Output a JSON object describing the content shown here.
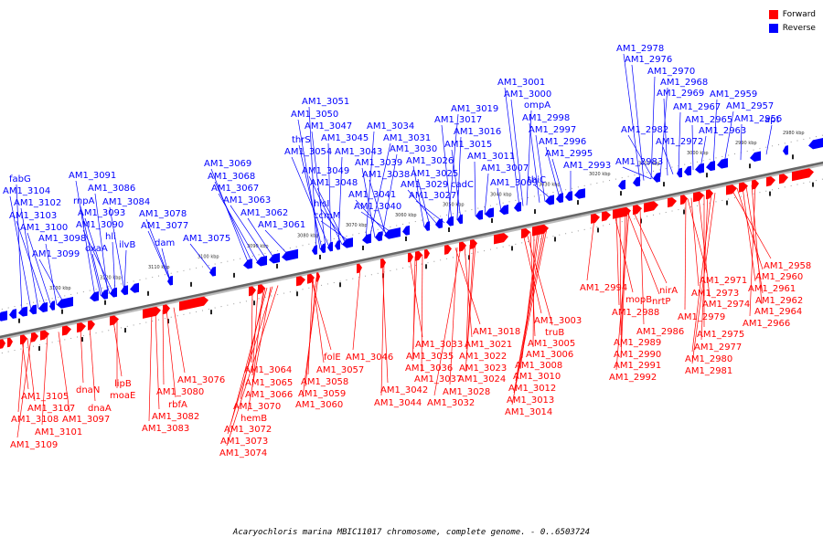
{
  "legend": {
    "forward_label": "Forward",
    "reverse_label": "Reverse",
    "forward_color": "#ff0000",
    "reverse_color": "#0000ff"
  },
  "caption": "Acaryochloris marina MBIC11017 chromosome, complete genome. - 0..6503724",
  "ticks": [
    "3130 kbp",
    "3120 kbp",
    "3110 kbp",
    "3100 kbp",
    "3090 kbp",
    "3080 kbp",
    "3070 kbp",
    "3060 kbp",
    "3050 kbp",
    "3040 kbp",
    "3030 kbp",
    "3020 kbp",
    "3010 kbp",
    "3000 kbp",
    "2990 kbp",
    "2980 kbp"
  ],
  "reverse_labels": [
    "fabG",
    "AM1_3104",
    "AM1_3102",
    "AM1_3103",
    "AM1_3100",
    "AM1_3098",
    "AM1_3099",
    "AM1_3091",
    "rnpA",
    "AM1_3086",
    "AM1_3093",
    "AM1_3084",
    "AM1_3090",
    "hli",
    "ilvB",
    "oxaA",
    "AM1_3078",
    "AM1_3077",
    "dam",
    "AM1_3075",
    "AM1_3069",
    "AM1_3068",
    "AM1_3067",
    "AM1_3063",
    "AM1_3062",
    "AM1_3061",
    "AM1_3051",
    "AM1_3050",
    "AM1_3047",
    "thrS",
    "AM1_3045",
    "AM1_3054",
    "AM1_3043",
    "AM1_3049",
    "AM1_3048",
    "hisI",
    "ccmM",
    "AM1_3034",
    "AM1_3031",
    "AM1_3039",
    "AM1_3030",
    "AM1_3038",
    "AM1_3041",
    "AM1_3040",
    "AM1_3026",
    "AM1_3025",
    "AM1_3029",
    "AM1_3027",
    "AM1_3019",
    "AM1_3017",
    "AM1_3016",
    "AM1_3015",
    "AM1_3011",
    "cadC",
    "AM1_3007",
    "AM1_3009",
    "AM1_3001",
    "AM1_3000",
    "ompA",
    "AM1_2998",
    "AM1_2997",
    "thiC",
    "AM1_2996",
    "AM1_2995",
    "AM1_2993",
    "AM1_2978",
    "AM1_2976",
    "AM1_2970",
    "AM1_2968",
    "AM1_2969",
    "AM1_2959",
    "AM1_2967",
    "AM1_2957",
    "AM1_2965",
    "AM1_2956",
    "AM1_2982",
    "AM1_2963",
    "AM1_2972",
    "apt",
    "AM1_2983"
  ],
  "forward_labels": [
    "AM1_3105",
    "AM1_3107",
    "AM1_3108",
    "AM1_3109",
    "dnaN",
    "dnaA",
    "AM1_3101",
    "AM1_3097",
    "lipB",
    "moaE",
    "AM1_3076",
    "AM1_3080",
    "rbfA",
    "AM1_3082",
    "AM1_3083",
    "AM1_3064",
    "AM1_3065",
    "AM1_3066",
    "AM1_3070",
    "hemB",
    "AM1_3072",
    "AM1_3073",
    "AM1_3074",
    "folE",
    "AM1_3057",
    "AM1_3058",
    "AM1_3059",
    "AM1_3060",
    "AM1_3046",
    "AM1_3042",
    "AM1_3044",
    "AM1_3033",
    "AM1_3035",
    "AM1_3036",
    "AM1_3037",
    "AM1_3028",
    "AM1_3032",
    "AM1_3018",
    "AM1_3021",
    "AM1_3022",
    "AM1_3023",
    "AM1_3024",
    "AM1_3003",
    "truB",
    "AM1_3005",
    "AM1_3006",
    "AM1_3008",
    "AM1_3010",
    "AM1_3012",
    "AM1_3013",
    "AM1_3014",
    "AM1_2994",
    "mopB",
    "nrtP",
    "nirA",
    "AM1_2988",
    "AM1_2986",
    "AM1_2989",
    "AM1_2990",
    "AM1_2991",
    "AM1_2992",
    "AM1_2971",
    "AM1_2973",
    "AM1_2974",
    "AM1_2979",
    "AM1_2975",
    "AM1_2977",
    "AM1_2980",
    "AM1_2981",
    "AM1_2958",
    "AM1_2960",
    "AM1_2961",
    "AM1_2962",
    "AM1_2964",
    "AM1_2966"
  ]
}
